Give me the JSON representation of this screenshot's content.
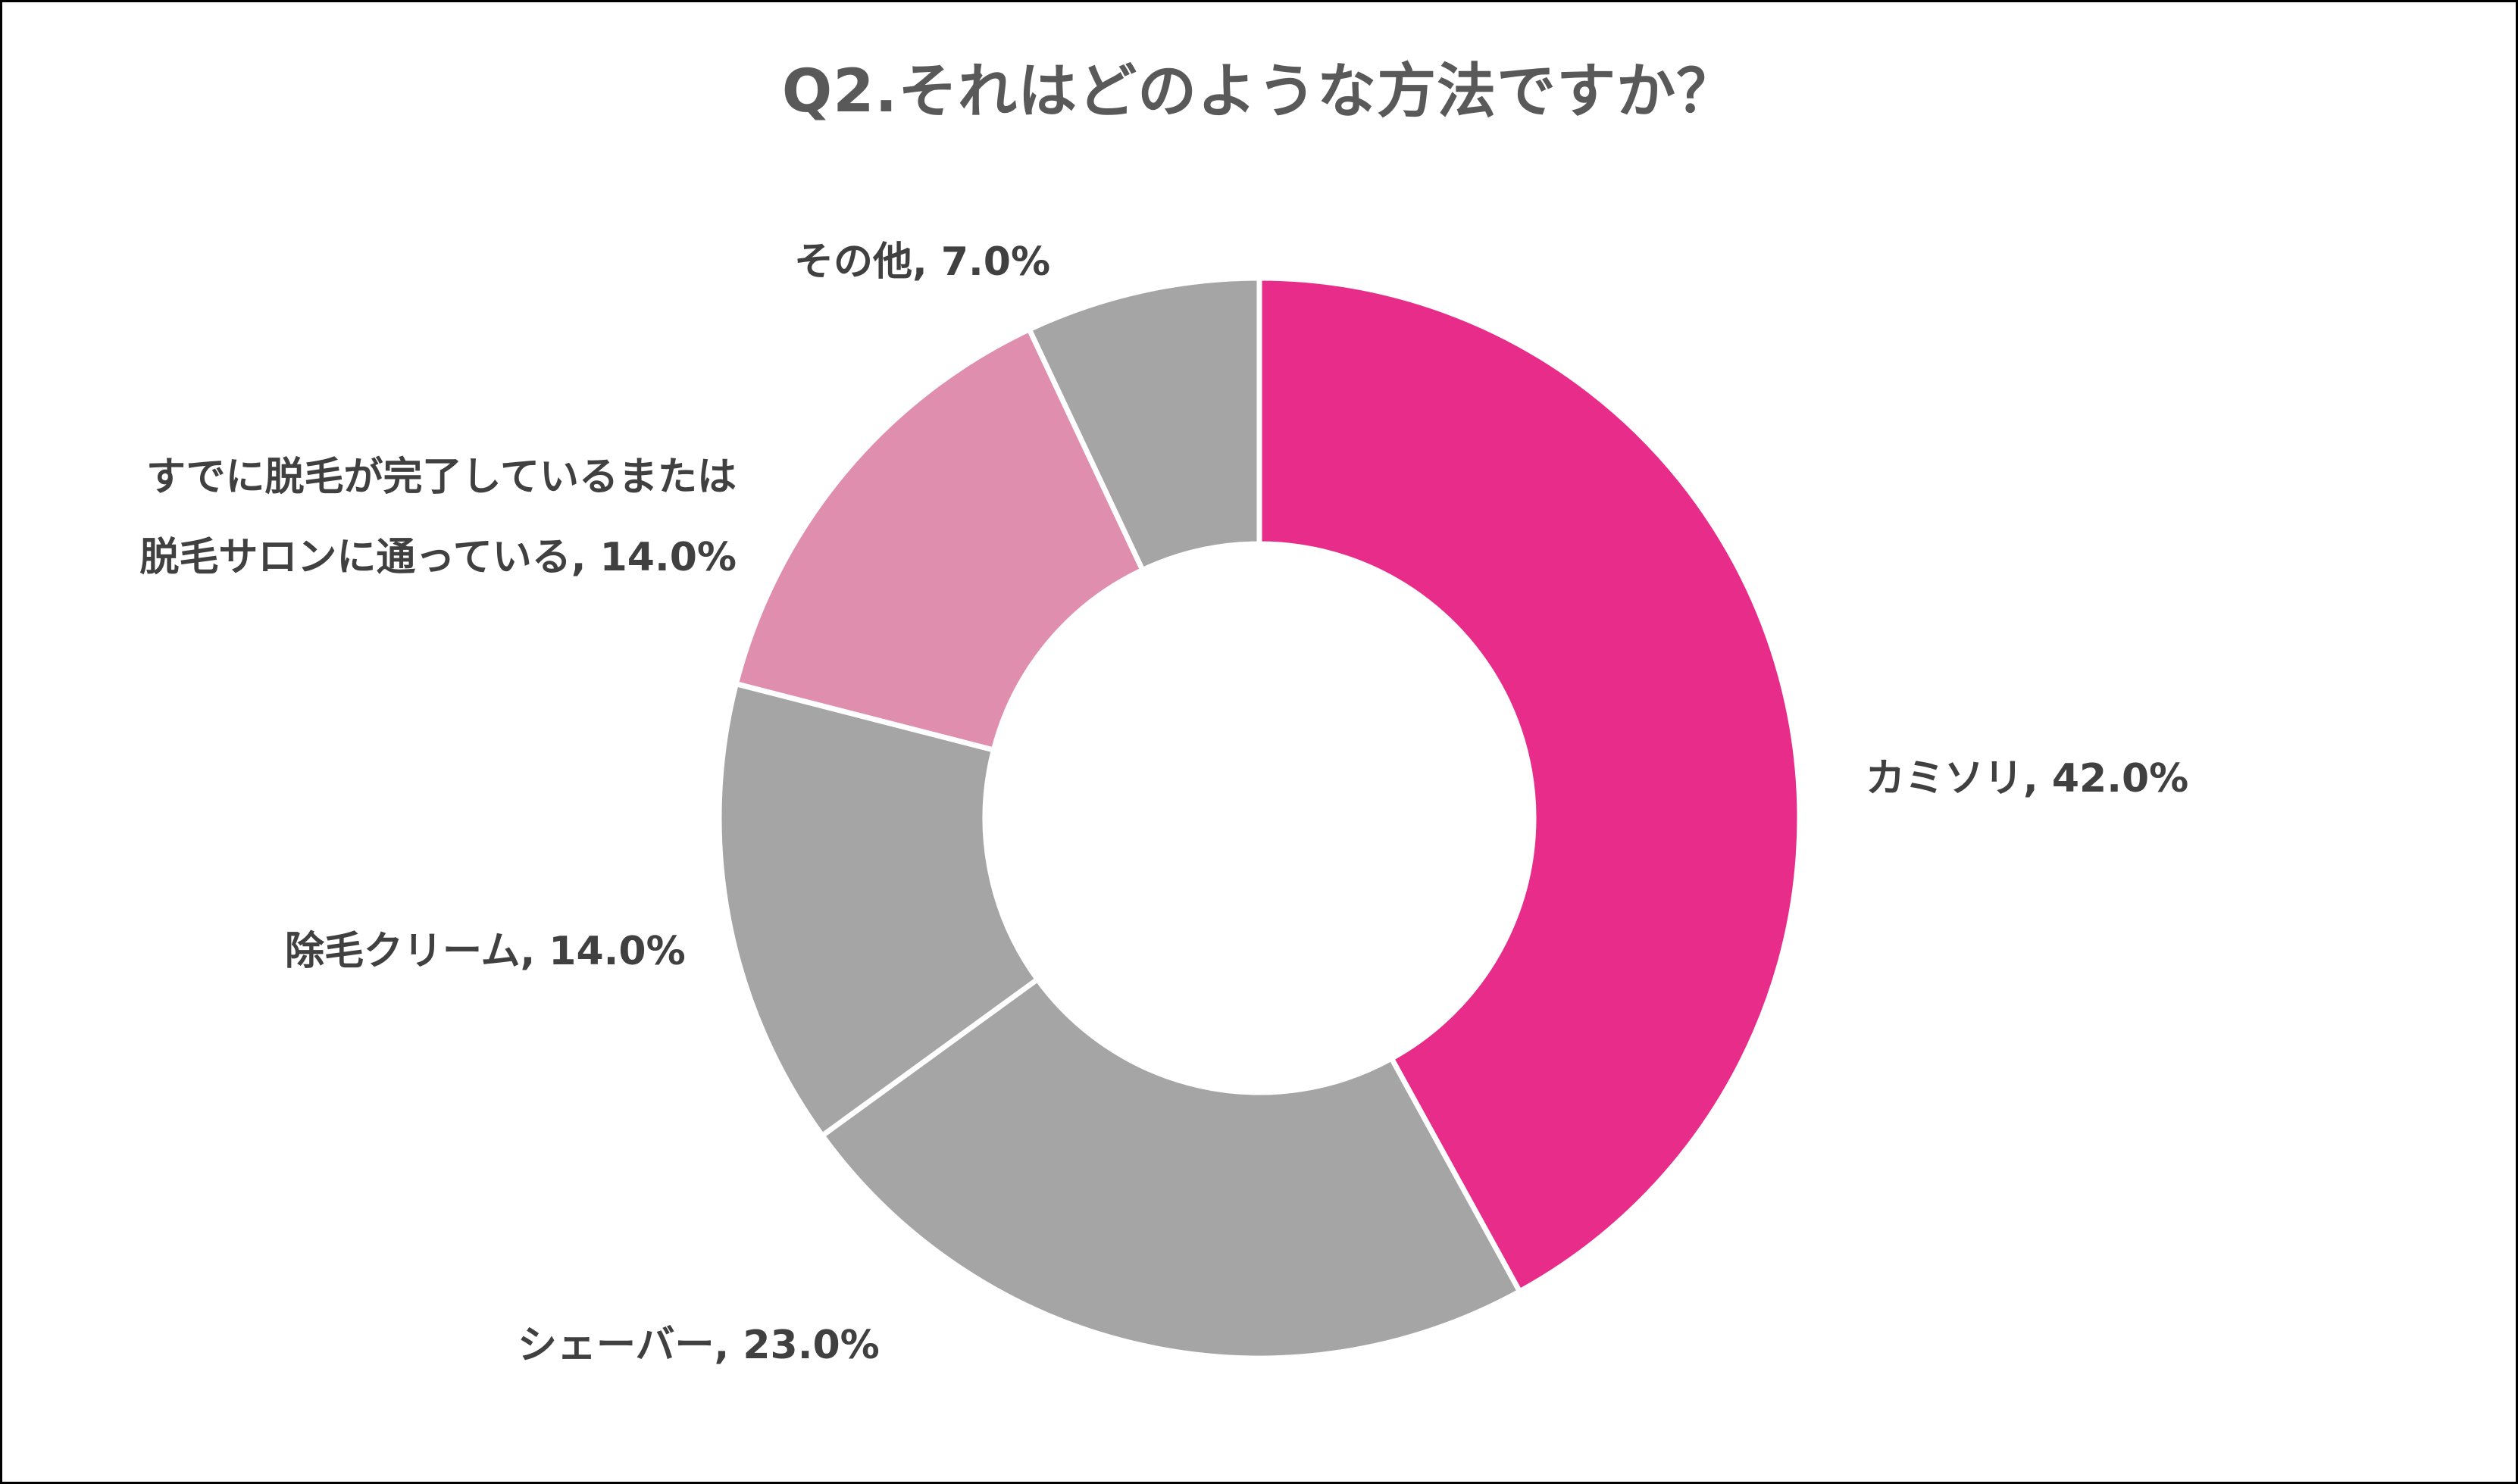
{
  "title": "Q2.それはどのような方法ですか？",
  "colors": {
    "title_text": "#595959",
    "label_text": "#404040",
    "accent_pink": "#E82C8A",
    "light_pink": "#E08EAE",
    "gray": "#A5A5A5",
    "separator": "#FFFFFF",
    "border": "#000000"
  },
  "chart_data": {
    "type": "pie",
    "variant": "donut",
    "title": "Q2.それはどのような方法ですか？",
    "start_angle_deg": 0,
    "direction": "clockwise",
    "categories": [
      "カミソリ",
      "シェーバー",
      "除毛クリーム",
      "すでに脱毛が完了しているまたは脱毛サロンに通っている",
      "その他"
    ],
    "values": [
      42.0,
      23.0,
      14.0,
      14.0,
      7.0
    ],
    "unit": "%",
    "slice_colors": [
      "#E82C8A",
      "#A5A5A5",
      "#A5A5A5",
      "#E08EAE",
      "#A5A5A5"
    ],
    "data_labels": [
      "カミソリ, 42.0%",
      "シェーバー, 23.0%",
      "除毛クリーム, 14.0%",
      "すでに脱毛が完了しているまたは 脱毛サロンに通っている, 14.0%",
      "その他, 7.0%"
    ],
    "legend": "none",
    "center": [
      1662,
      1080
    ],
    "outer_radius": 713,
    "inner_radius": 362
  },
  "labels": {
    "kamisori": "カミソリ, 42.0%",
    "shaver": "シェーバー, 23.0%",
    "cream": "除毛クリーム, 14.0%",
    "salon_line1": "すでに脱毛が完了しているまたは",
    "salon_line2": "脱毛サロンに通っている, 14.0%",
    "other": "その他, 7.0%"
  }
}
